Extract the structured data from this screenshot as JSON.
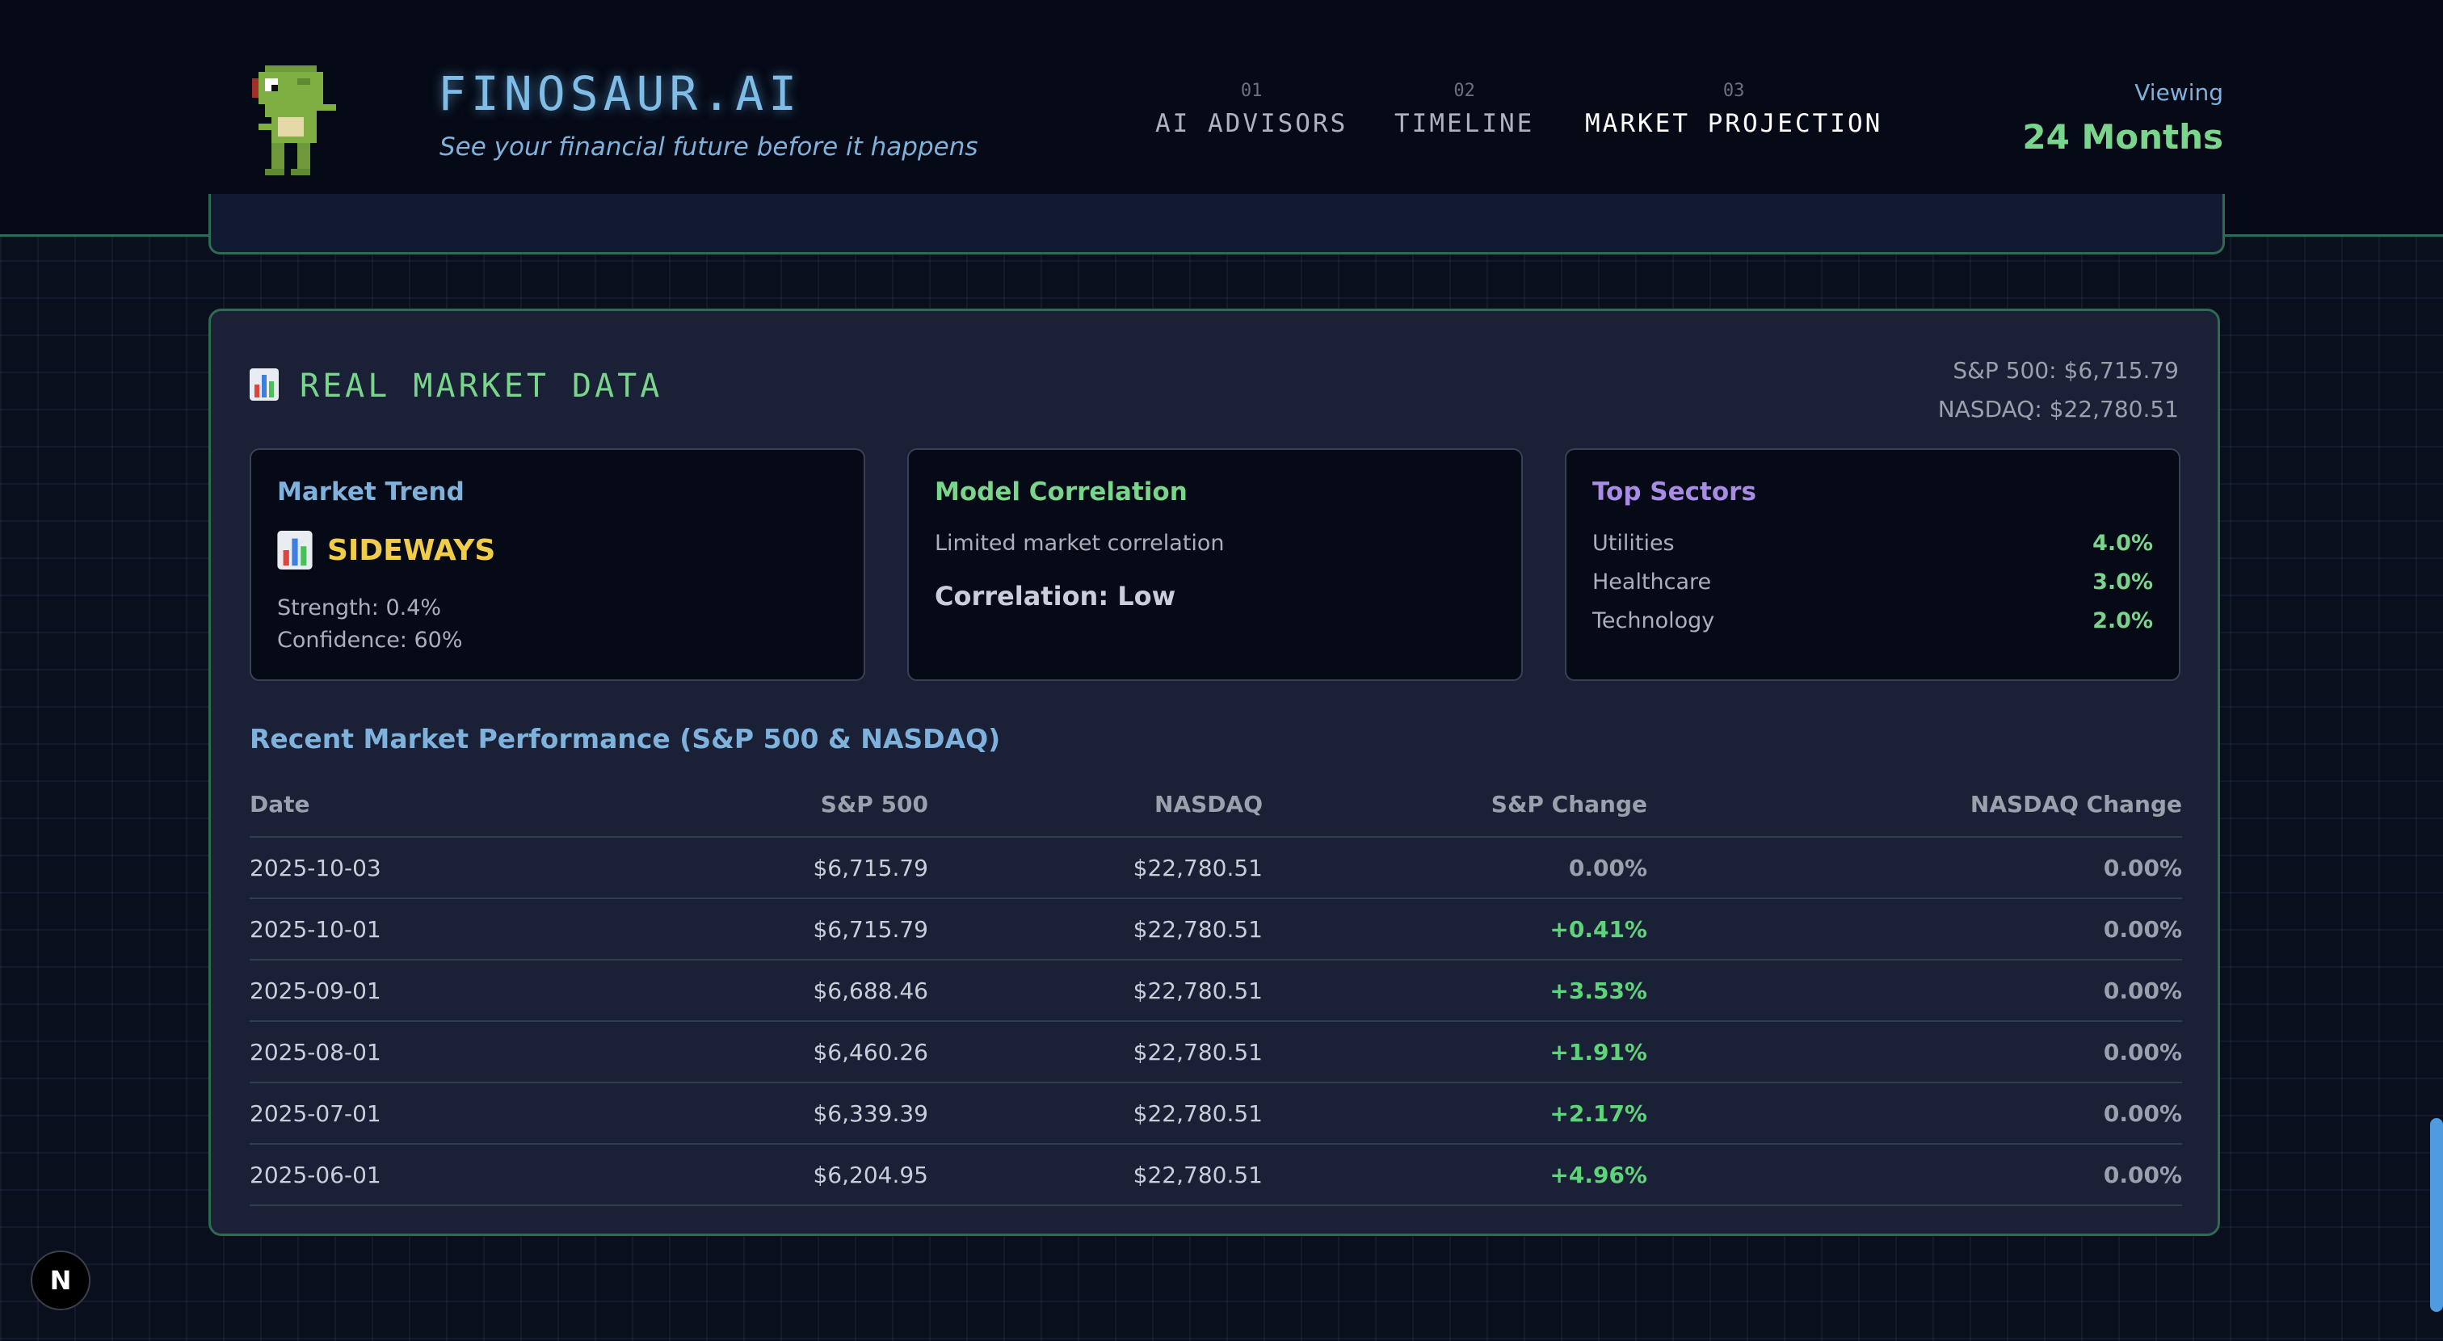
{
  "header": {
    "brand": "FINOSAUR.AI",
    "tagline": "See your financial future before it happens",
    "nav": [
      {
        "num": "01",
        "label": "AI ADVISORS"
      },
      {
        "num": "02",
        "label": "TIMELINE"
      },
      {
        "num": "03",
        "label": "MARKET PROJECTION"
      }
    ],
    "viewing_label": "Viewing",
    "viewing_value": "24 Months"
  },
  "market": {
    "title": "REAL MARKET DATA",
    "sp500_summary": "S&P 500: $6,715.79",
    "nasdaq_summary": "NASDAQ: $22,780.51",
    "trend": {
      "title": "Market Trend",
      "value": "SIDEWAYS",
      "strength": "Strength: 0.4%",
      "confidence": "Confidence: 60%"
    },
    "correlation": {
      "title": "Model Correlation",
      "description": "Limited market correlation",
      "value": "Correlation: Low"
    },
    "sectors": {
      "title": "Top Sectors",
      "items": [
        {
          "name": "Utilities",
          "value": "4.0%"
        },
        {
          "name": "Healthcare",
          "value": "3.0%"
        },
        {
          "name": "Technology",
          "value": "2.0%"
        }
      ]
    },
    "table": {
      "title": "Recent Market Performance (S&P 500 & NASDAQ)",
      "headers": [
        "Date",
        "S&P 500",
        "NASDAQ",
        "S&P Change",
        "NASDAQ Change"
      ],
      "rows": [
        [
          "2025-10-03",
          "$6,715.79",
          "$22,780.51",
          "0.00%",
          "0.00%"
        ],
        [
          "2025-10-01",
          "$6,715.79",
          "$22,780.51",
          "+0.41%",
          "0.00%"
        ],
        [
          "2025-09-01",
          "$6,688.46",
          "$22,780.51",
          "+3.53%",
          "0.00%"
        ],
        [
          "2025-08-01",
          "$6,460.26",
          "$22,780.51",
          "+1.91%",
          "0.00%"
        ],
        [
          "2025-07-01",
          "$6,339.39",
          "$22,780.51",
          "+2.17%",
          "0.00%"
        ],
        [
          "2025-06-01",
          "$6,204.95",
          "$22,780.51",
          "+4.96%",
          "0.00%"
        ]
      ]
    }
  },
  "badge": "N",
  "colors": {
    "accent_green": "#79d48c",
    "accent_blue": "#7eb2dc",
    "trend_yellow": "#f1cc48",
    "sectors_purple": "#a98be6",
    "positive": "#5fd37a"
  },
  "icons": {
    "logo": "pixel-dinosaur-icon",
    "market_title": "bar-chart-icon",
    "trend": "bar-chart-icon"
  }
}
